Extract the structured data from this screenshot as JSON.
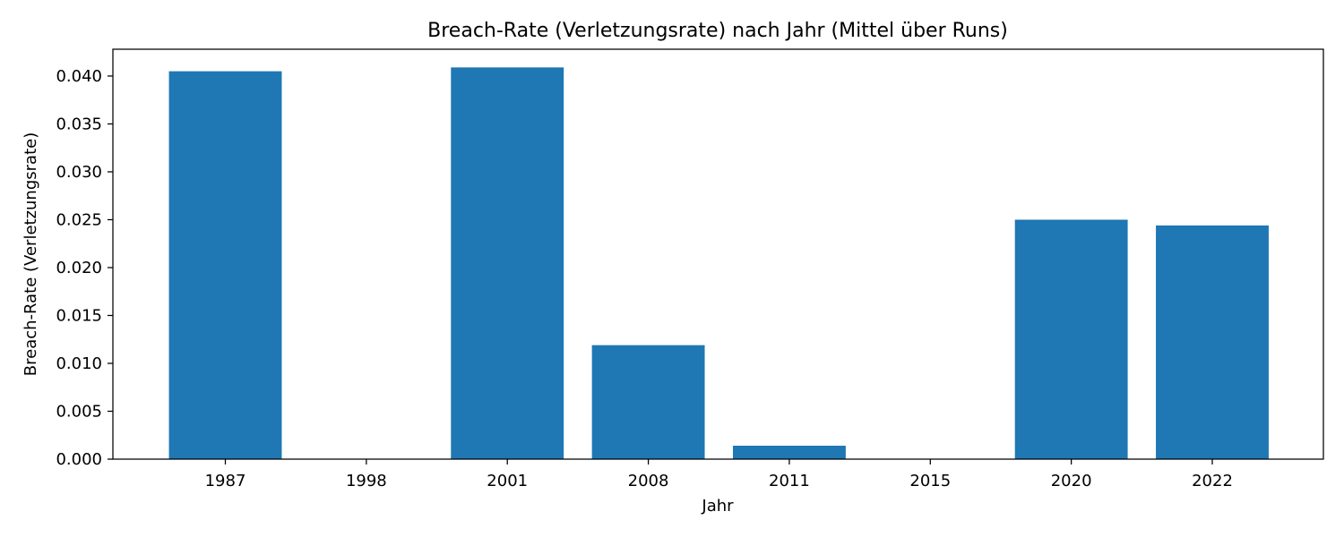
{
  "chart_data": {
    "type": "bar",
    "title": "Breach-Rate (Verletzungsrate) nach Jahr (Mittel über Runs)",
    "xlabel": "Jahr",
    "ylabel": "Breach-Rate (Verletzungsrate)",
    "categories": [
      "1987",
      "1998",
      "2001",
      "2008",
      "2011",
      "2015",
      "2020",
      "2022"
    ],
    "values": [
      0.0405,
      0.0,
      0.0409,
      0.0119,
      0.0014,
      0.0,
      0.025,
      0.0244
    ],
    "ylim": [
      0,
      0.0428
    ],
    "yticks": [
      0.0,
      0.005,
      0.01,
      0.015,
      0.02,
      0.025,
      0.03,
      0.035,
      0.04
    ],
    "ytick_labels": [
      "0.000",
      "0.005",
      "0.010",
      "0.015",
      "0.020",
      "0.025",
      "0.030",
      "0.035",
      "0.040"
    ],
    "bar_color": "#1f77b4",
    "grid": false,
    "legend": "none"
  }
}
